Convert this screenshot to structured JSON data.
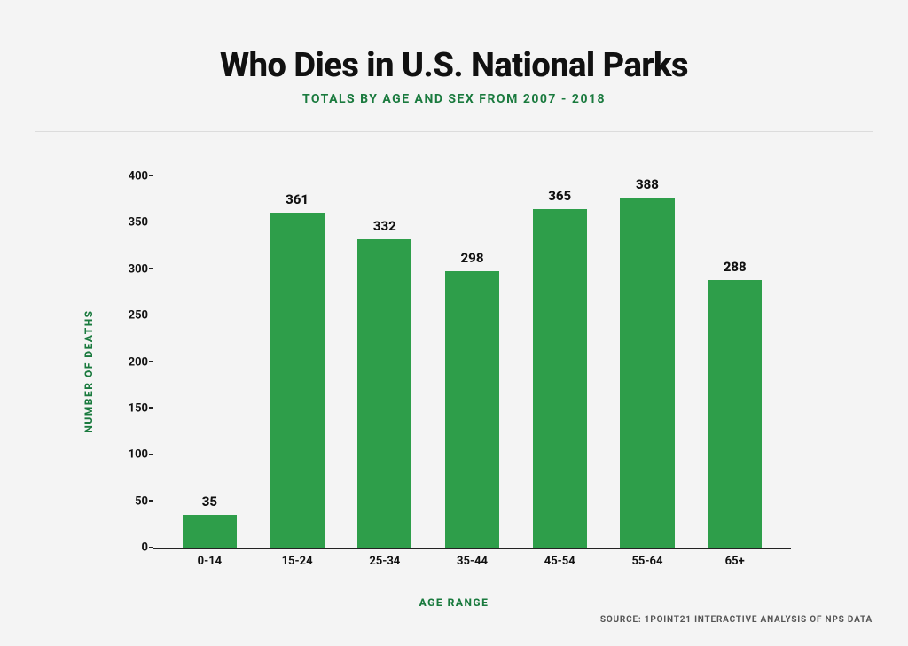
{
  "header": {
    "title": "Who Dies in U.S. National Parks",
    "subtitle": "TOTALS BY AGE AND SEX FROM 2007 - 2018"
  },
  "chart": {
    "type": "bar",
    "y_label": "NUMBER OF DEATHS",
    "x_label": "AGE RANGE",
    "ylim": [
      0,
      400
    ],
    "ytick_step": 50,
    "yticks": [
      0,
      50,
      100,
      150,
      200,
      250,
      300,
      350,
      400
    ],
    "categories": [
      "0-14",
      "15-24",
      "25-34",
      "35-44",
      "45-54",
      "55-64",
      "65+"
    ],
    "values": [
      35,
      361,
      332,
      298,
      365,
      388,
      288
    ],
    "bar_color": "#2e9e4a",
    "axis_color": "#222222",
    "background_color": "#f4f4f4",
    "accent_color": "#1a7a3e",
    "bar_width": 0.62,
    "title_fontsize": 38,
    "subtitle_fontsize": 14,
    "axis_label_fontsize": 12,
    "tick_fontsize": 13,
    "value_label_fontsize": 15
  },
  "footer": {
    "source": "SOURCE: 1POINT21 INTERACTIVE ANALYSIS OF NPS DATA"
  }
}
